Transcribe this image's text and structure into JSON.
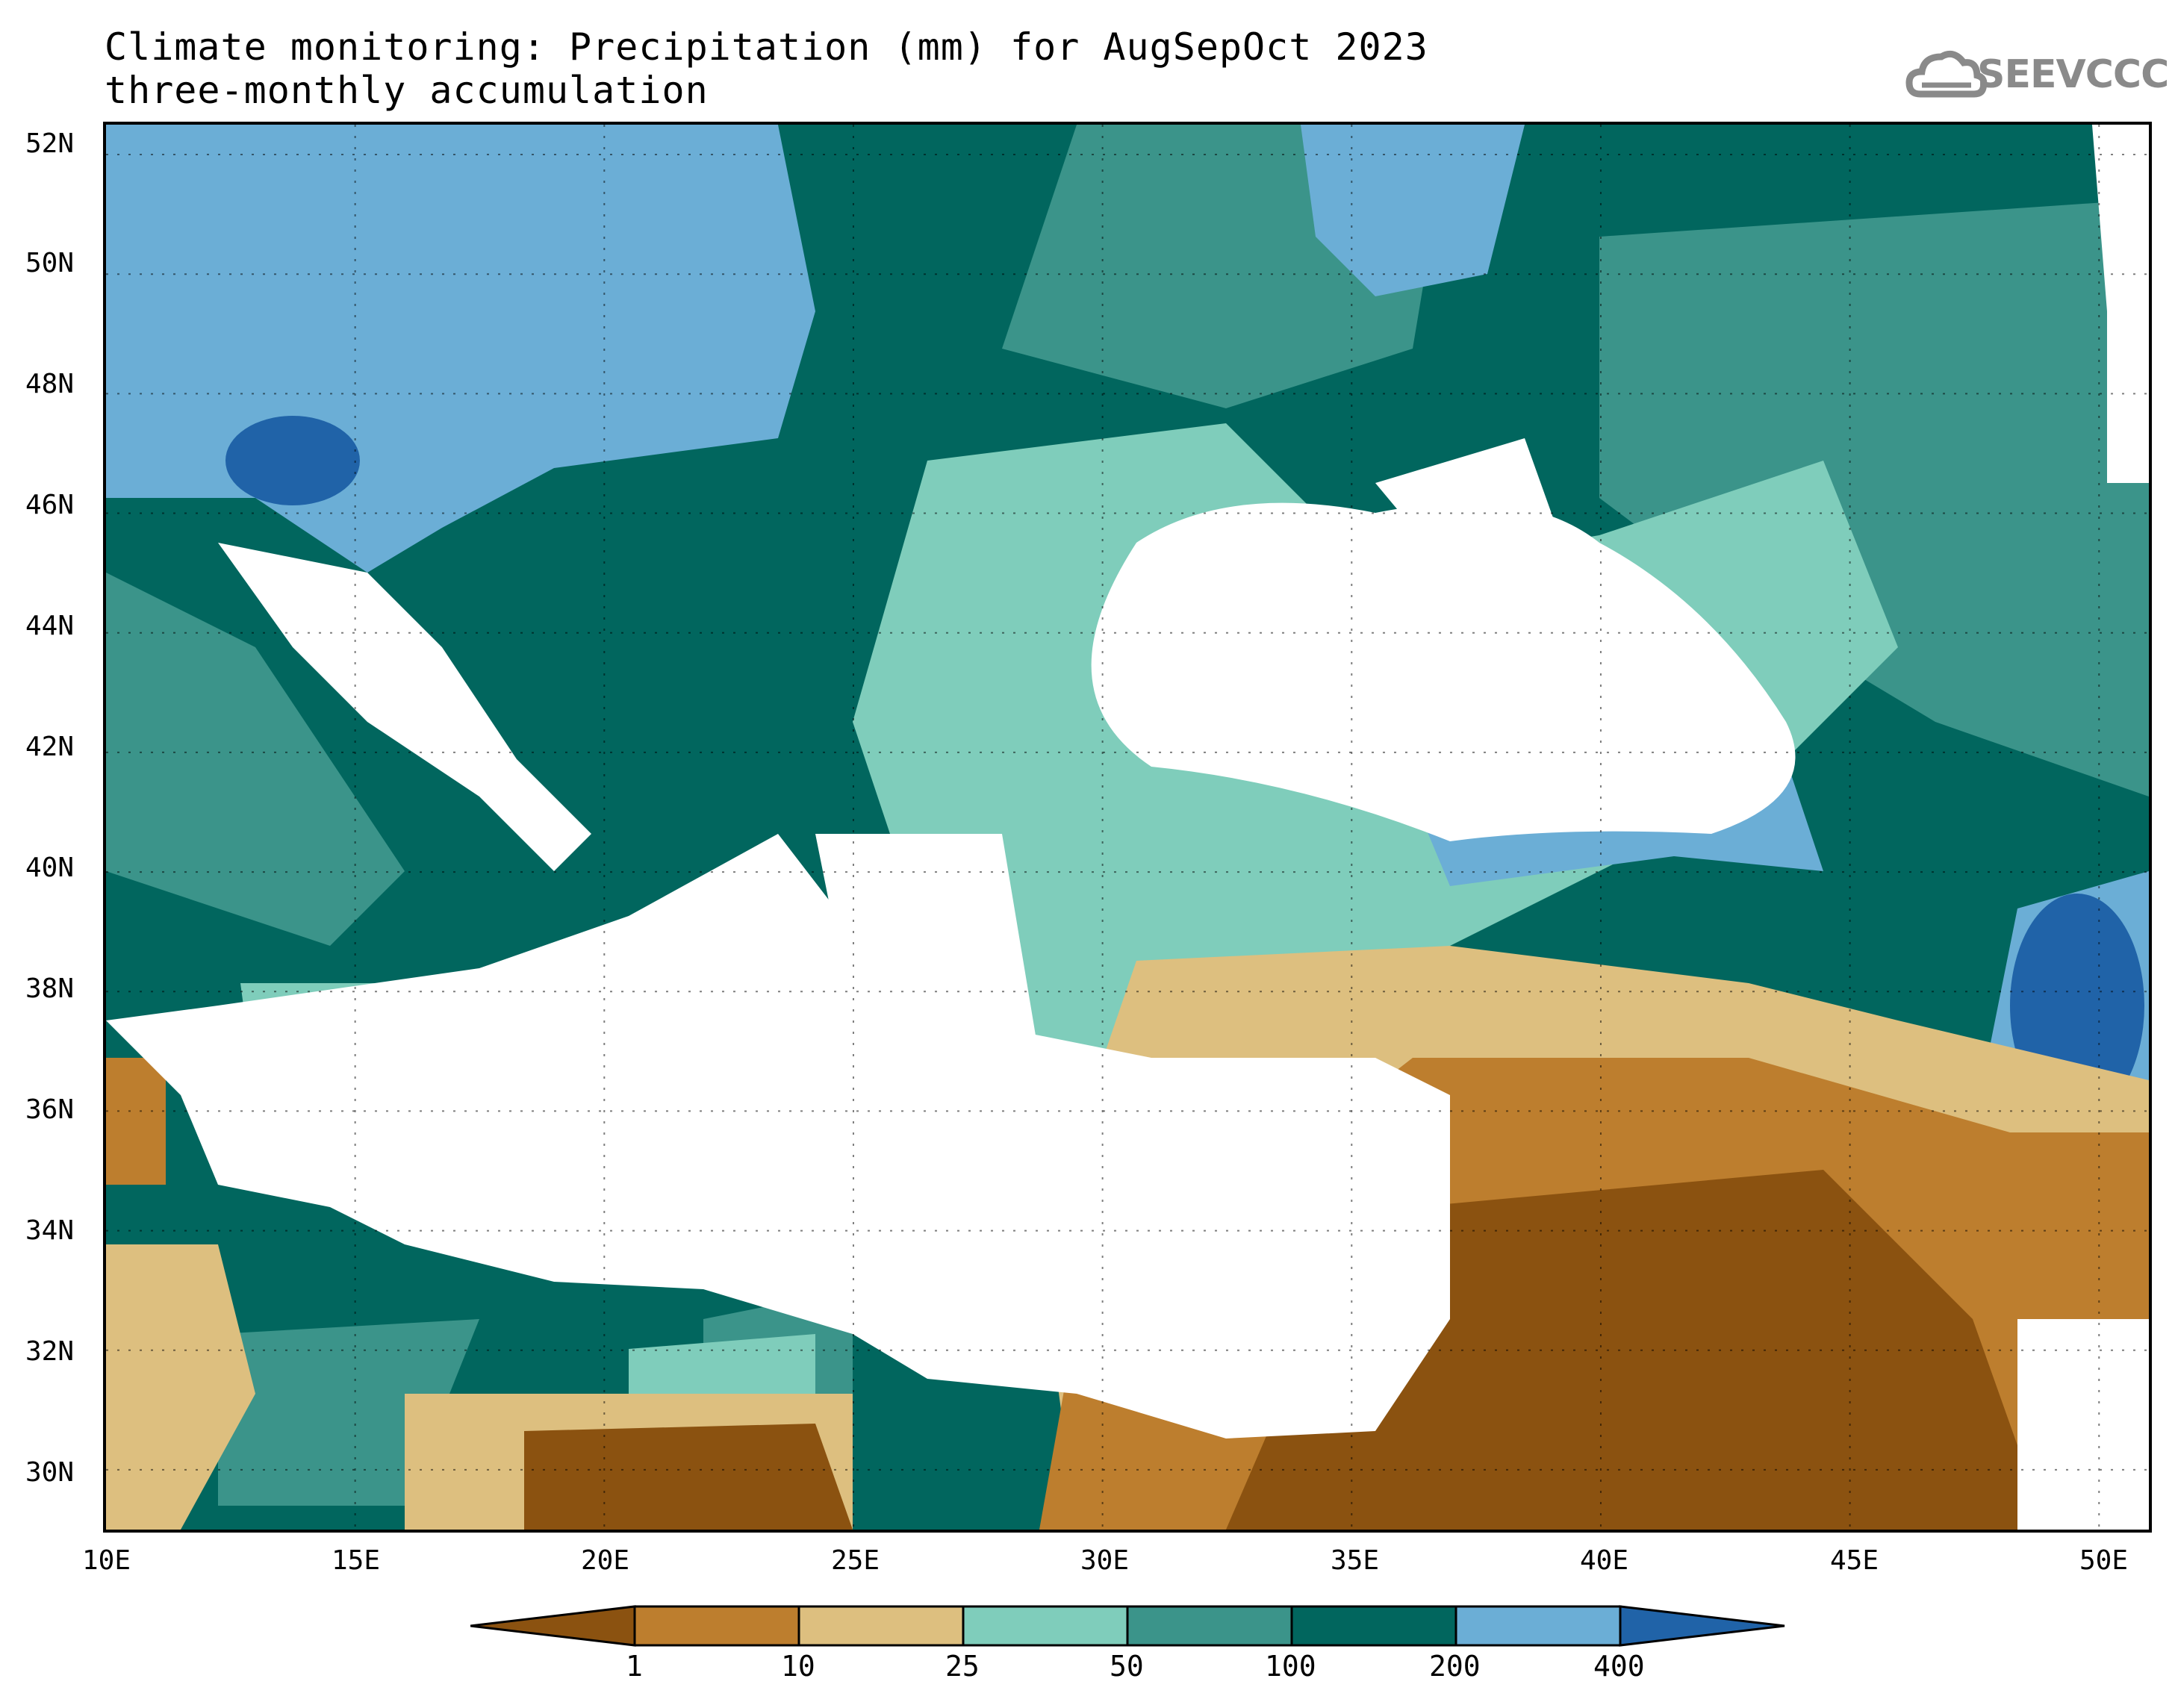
{
  "title": {
    "line1": "Climate monitoring: Precipitation (mm) for AugSepOct 2023",
    "line2": "three-monthly accumulation"
  },
  "logo": {
    "text": "SEEVCCC",
    "icon": "cloud-icon"
  },
  "map": {
    "lon_range": [
      10,
      51
    ],
    "lat_range": [
      29,
      52.5
    ],
    "lon_ticks": [
      "10E",
      "15E",
      "20E",
      "25E",
      "30E",
      "35E",
      "40E",
      "45E",
      "50E"
    ],
    "lat_ticks": [
      "30N",
      "32N",
      "34N",
      "36N",
      "38N",
      "40N",
      "42N",
      "44N",
      "46N",
      "48N",
      "50N",
      "52N"
    ],
    "grid": "dotted"
  },
  "legend": {
    "thresholds": [
      "1",
      "10",
      "25",
      "50",
      "100",
      "200",
      "400"
    ],
    "colors": [
      "#8B5210",
      "#BD7E2E",
      "#DDBF7F",
      "#7FCDBB",
      "#3B948A",
      "#01665E",
      "#6BAED6",
      "#2063A8"
    ]
  }
}
